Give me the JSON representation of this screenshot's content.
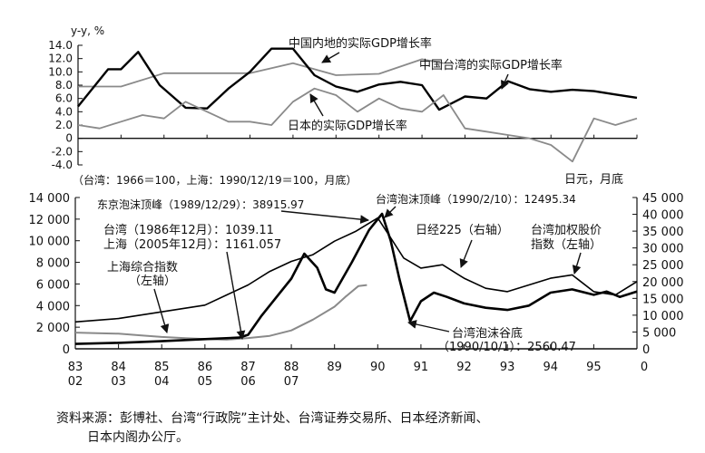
{
  "chart_data": [
    {
      "type": "line",
      "ylabel": "y-y, %",
      "ylim": [
        -4,
        14
      ],
      "yticks": [
        "14.0",
        "12.0",
        "10.0",
        "8.0",
        "6.0",
        "4.0",
        "2.0",
        "0",
        "-2.0",
        "-4.0"
      ],
      "x_range": [
        1983,
        1996
      ],
      "series": [
        {
          "name": "中国内地的实际GDP增长率",
          "color": "#8a8a8a",
          "x": [
            1983,
            1984,
            1985,
            1986,
            1987,
            1988,
            1989,
            1990,
            1991,
            1991.5
          ],
          "y": [
            7.8,
            7.8,
            9.8,
            9.8,
            9.8,
            11.3,
            9.5,
            9.7,
            11.9,
            11.3
          ]
        },
        {
          "name": "中国台湾的实际GDP增长率",
          "color": "#000000",
          "x": [
            1983,
            1983.7,
            1984,
            1984.4,
            1984.9,
            1985.5,
            1986,
            1986.5,
            1987,
            1987.5,
            1988,
            1988.5,
            1989,
            1989.5,
            1990,
            1990.5,
            1991,
            1991.4,
            1992,
            1992.5,
            1993,
            1993.5,
            1994,
            1994.5,
            1995,
            1995.5,
            1996
          ],
          "y": [
            4.8,
            10.4,
            10.4,
            13.0,
            8.0,
            4.6,
            4.5,
            7.5,
            10.0,
            13.5,
            13.5,
            9.5,
            7.8,
            7.0,
            8.1,
            8.5,
            8.0,
            4.3,
            6.3,
            6.0,
            8.6,
            7.4,
            7.0,
            7.3,
            7.1,
            6.6,
            6.1
          ]
        },
        {
          "name": "日本的实际GDP增长率",
          "color": "#8a8a8a",
          "x": [
            1983,
            1983.5,
            1984,
            1984.5,
            1985,
            1985.5,
            1986,
            1986.5,
            1987,
            1987.5,
            1988,
            1988.5,
            1989,
            1989.5,
            1990,
            1990.5,
            1991,
            1991.5,
            1992,
            1992.5,
            1993,
            1993.5,
            1994,
            1994.5,
            1995,
            1995.5,
            1996
          ],
          "y": [
            2.0,
            1.5,
            2.5,
            3.5,
            3.0,
            5.5,
            4.0,
            2.5,
            2.5,
            2.0,
            5.5,
            7.5,
            6.5,
            4.0,
            6.0,
            4.5,
            4.0,
            6.5,
            1.5,
            1.0,
            0.5,
            0.0,
            -1.0,
            -3.5,
            3.0,
            2.0,
            3.0
          ]
        }
      ]
    },
    {
      "type": "line",
      "note": "（台湾：1966＝100，上海：1990/12/19＝100，月底）",
      "ylim": [
        0,
        14000
      ],
      "yticks_left": [
        "0",
        "2 000",
        "4 000",
        "6 000",
        "8 000",
        "10 000",
        "12 000",
        "14 000"
      ],
      "y2label": "日元，月底",
      "y2lim": [
        0,
        45000
      ],
      "yticks_right": [
        "0",
        "5 000",
        "10 000",
        "15 000",
        "20 000",
        "25 000",
        "30 000",
        "35 000",
        "40 000",
        "45 000"
      ],
      "x_range": [
        1983,
        1996
      ],
      "xticks_top": [
        "83",
        "84",
        "85",
        "86",
        "87",
        "88",
        "89",
        "90",
        "91",
        "92",
        "93",
        "94",
        "95"
      ],
      "xticks_bottom": [
        "02",
        "03",
        "04",
        "05",
        "06",
        "07"
      ],
      "series": [
        {
          "name": "上海综合指数",
          "axis": "left",
          "color": "#8a8a8a",
          "x": [
            1983,
            1983.5,
            1984,
            1984.5,
            1985,
            1985.5,
            1986,
            1986.5,
            1987,
            1987.5,
            1988,
            1988.5,
            1989,
            1989.25,
            1989.55,
            1989.75
          ],
          "y": [
            1500,
            1450,
            1400,
            1250,
            1100,
            1000,
            900,
            850,
            1000,
            1200,
            1700,
            2700,
            3900,
            4800,
            5800,
            5900
          ]
        },
        {
          "name": "台湾加权股价指数",
          "axis": "left",
          "color": "#000000",
          "x": [
            1983,
            1984,
            1985,
            1986,
            1986.8,
            1987,
            1987.3,
            1987.6,
            1988,
            1988.3,
            1988.6,
            1988.8,
            1989,
            1989.4,
            1989.8,
            1990.1,
            1990.3,
            1990.5,
            1990.75,
            1991,
            1991.3,
            1991.6,
            1992,
            1992.5,
            1993,
            1993.5,
            1994,
            1994.5,
            1995,
            1995.3,
            1995.6,
            1996
          ],
          "y": [
            450,
            550,
            700,
            900,
            1039,
            1300,
            3000,
            4500,
            6500,
            8800,
            7500,
            5500,
            5200,
            8000,
            11000,
            12495,
            10000,
            6500,
            2560,
            4400,
            5200,
            4800,
            4200,
            3800,
            3600,
            4000,
            5200,
            5500,
            5000,
            5300,
            4800,
            5300
          ]
        },
        {
          "name": "日经225",
          "axis": "right",
          "color": "#000000",
          "x": [
            1983,
            1984,
            1985,
            1986,
            1986.5,
            1987,
            1987.5,
            1988,
            1988.5,
            1989,
            1989.5,
            1990,
            1990.3,
            1990.6,
            1991,
            1991.5,
            1992,
            1992.5,
            1993,
            1993.5,
            1994,
            1994.5,
            1995,
            1995.5,
            1996
          ],
          "y": [
            8000,
            9000,
            11000,
            13000,
            16000,
            19000,
            23000,
            26000,
            28000,
            32000,
            35000,
            38916,
            33000,
            27000,
            24000,
            25000,
            21000,
            18000,
            17000,
            19000,
            21000,
            22000,
            17000,
            16000,
            20000
          ]
        }
      ]
    }
  ],
  "labels": {
    "china_mainland_gdp": "中国内地的实际GDP增长率",
    "taiwan_gdp": "中国台湾的实际GDP增长率",
    "japan_gdp": "日本的实际GDP增长率",
    "tokyo_peak": "东京泡沫顶峰（1989/12/29）：38915.97",
    "taiwan_peak": "台湾泡沫顶峰（1990/2/10）：12495.34",
    "taiwan_1986": "台湾（1986年12月）：1039.11",
    "shanghai_2005": "上海（2005年12月）：1161.057",
    "nikkei": "日经225（右轴）",
    "taiex_line1": "台湾加权股价",
    "taiex_line2": "指数（左轴）",
    "sse_line1": "上海综合指数",
    "sse_line2": "（左轴）",
    "taiwan_trough_line1": "台湾泡沫谷底",
    "taiwan_trough_line2": "（1990/10/1）：2560.47"
  },
  "source": {
    "line1": "资料来源：彭博社、台湾“行政院”主计处、台湾证券交易所、日本经济新闻、",
    "line2": "日本内阁办公厅。"
  }
}
